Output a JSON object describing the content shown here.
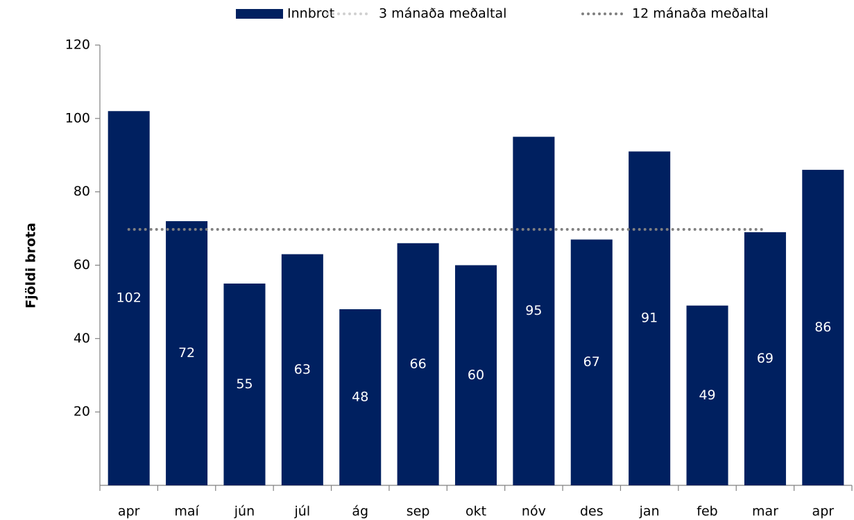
{
  "chart_data": {
    "type": "bar",
    "y_axis_label": "Fjöldi brota",
    "categories": [
      "apr",
      "maí",
      "jún",
      "júl",
      "ág",
      "sep",
      "okt",
      "nóv",
      "des",
      "jan",
      "feb",
      "mar",
      "apr"
    ],
    "series": [
      {
        "name": "Innbrot",
        "color": "#002060",
        "values": [
          102,
          72,
          55,
          63,
          48,
          66,
          60,
          95,
          67,
          91,
          49,
          69,
          86
        ],
        "label_color": "#ffffff"
      },
      {
        "name": "3 mánaða meðaltal",
        "color": "#d0d0d0",
        "type": "line",
        "values": [
          null,
          null,
          null,
          null,
          null,
          null,
          null,
          null,
          null,
          null,
          null,
          null,
          null
        ]
      },
      {
        "name": "12 mánaða meðaltal",
        "color": "#808080",
        "type": "line",
        "values": [
          69.75,
          69.75,
          69.75,
          69.75,
          69.75,
          69.75,
          69.75,
          69.75,
          69.75,
          69.75,
          69.75,
          69.75,
          null
        ]
      }
    ],
    "ylim": [
      0,
      120
    ],
    "yticks": [
      20,
      40,
      60,
      80,
      100,
      120
    ],
    "grid": false,
    "legend": "top"
  }
}
